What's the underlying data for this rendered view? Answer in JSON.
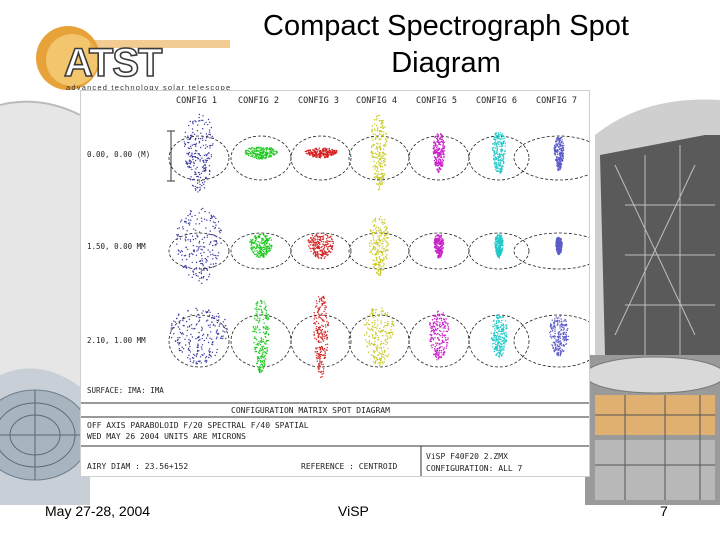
{
  "title": "Compact Spectrograph Spot Diagram",
  "logo": {
    "text": "ATST",
    "tagline": "advanced technology solar telescope"
  },
  "diagram": {
    "config_labels": [
      "CONFIG 1",
      "CONFIG 2",
      "CONFIG 3",
      "CONFIG 4",
      "CONFIG 5",
      "CONFIG 6",
      "CONFIG 7"
    ],
    "field_labels": [
      "0.00, 0.00 (M)",
      "1.50, 0.00 MM",
      "2.10, 1.00 MM"
    ],
    "surface_label": "SURFACE: IMA: IMA",
    "plot_title": "CONFIGURATION MATRIX SPOT DIAGRAM",
    "info_line1": "OFF AXIS PARABOLOID F/20 SPECTRAL F/40 SPATIAL",
    "info_line2": "WED MAY 26 2004 UNITS ARE MICRONS",
    "airy_diam": "AIRY DIAM : 23.56+152",
    "reference": "REFERENCE : CENTROID",
    "file_name": "ViSP F40F20 2.ZMX",
    "configuration": "CONFIGURATION: ALL 7",
    "spot_colors": [
      "#3a3aa0",
      "#1ec81e",
      "#d21e1e",
      "#c8c81e",
      "#c81ec8",
      "#1ec8c8",
      "#5a5ac8"
    ]
  },
  "footer": {
    "date": "May 27-28, 2004",
    "center": "ViSP",
    "page": "7"
  }
}
